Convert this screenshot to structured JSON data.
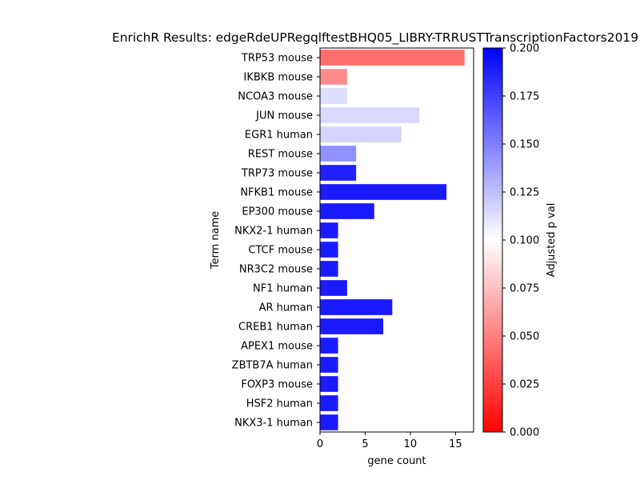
{
  "chart_data": {
    "type": "bar",
    "orientation": "horizontal",
    "title": "EnrichR Results: edgeRdeUPRegqlftestBHQ05_LIBRY-TRRUSTTranscriptionFactors2019",
    "xlabel": "gene count",
    "ylabel": "Term name",
    "xlim": [
      0,
      17
    ],
    "x_ticks": [
      0,
      5,
      10,
      15
    ],
    "grid": false,
    "categories": [
      "TRP53 mouse",
      "IKBKB mouse",
      "NCOA3 mouse",
      "JUN mouse",
      "EGR1 human",
      "REST mouse",
      "TRP73 mouse",
      "NFKB1 mouse",
      "EP300 mouse",
      "NKX2-1 human",
      "CTCF mouse",
      "NR3C2 mouse",
      "NF1 human",
      "AR human",
      "CREB1 human",
      "APEX1 mouse",
      "ZBTB7A human",
      "FOXP3 mouse",
      "HSF2 human",
      "NKX3-1 human"
    ],
    "values": [
      16,
      3,
      3,
      11,
      9,
      4,
      4,
      14,
      6,
      2,
      2,
      2,
      3,
      8,
      7,
      2,
      2,
      2,
      2,
      2
    ],
    "adjusted_p": [
      0.043,
      0.055,
      0.113,
      0.115,
      0.117,
      0.143,
      0.188,
      0.19,
      0.19,
      0.19,
      0.19,
      0.19,
      0.19,
      0.19,
      0.19,
      0.19,
      0.19,
      0.19,
      0.19,
      0.19
    ],
    "colorbar": {
      "label": "Adjusted p val",
      "range": [
        0,
        0.2
      ],
      "ticks": [
        "0.000",
        "0.025",
        "0.050",
        "0.075",
        "0.100",
        "0.125",
        "0.150",
        "0.175",
        "0.200"
      ],
      "colormap": [
        "#ff0000",
        "#ffffff",
        "#0000ff"
      ]
    }
  }
}
